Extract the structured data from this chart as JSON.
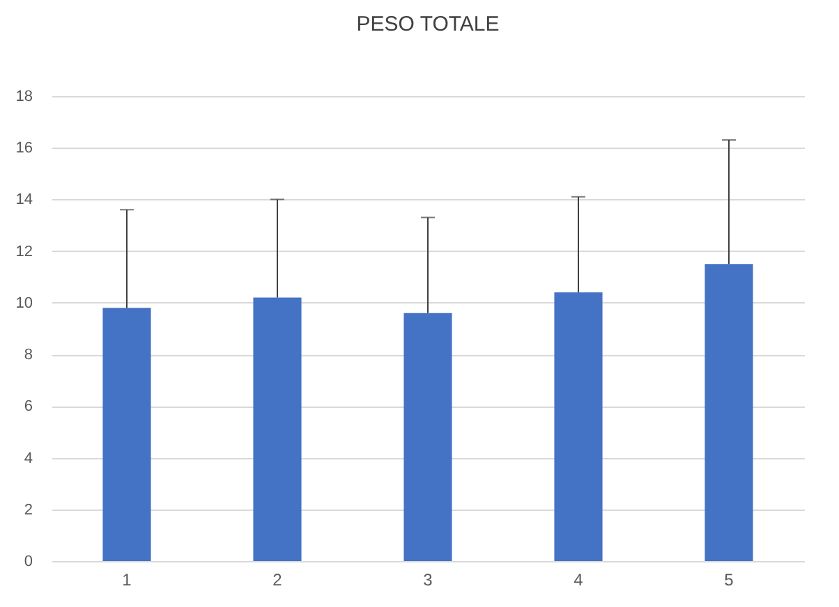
{
  "chart_data": {
    "type": "bar",
    "title": "PESO TOTALE",
    "categories": [
      "1",
      "2",
      "3",
      "4",
      "5"
    ],
    "values": [
      9.8,
      10.2,
      9.6,
      10.4,
      11.5
    ],
    "errors": [
      [
        9.8,
        13.6
      ],
      [
        10.2,
        14.0
      ],
      [
        9.6,
        13.3
      ],
      [
        10.4,
        14.1
      ],
      [
        11.5,
        16.3
      ]
    ],
    "color": "#4472c4",
    "ylim": [
      0,
      18
    ],
    "yticks": [
      0,
      2,
      4,
      6,
      8,
      10,
      12,
      14,
      16,
      18
    ],
    "grid": "y"
  }
}
